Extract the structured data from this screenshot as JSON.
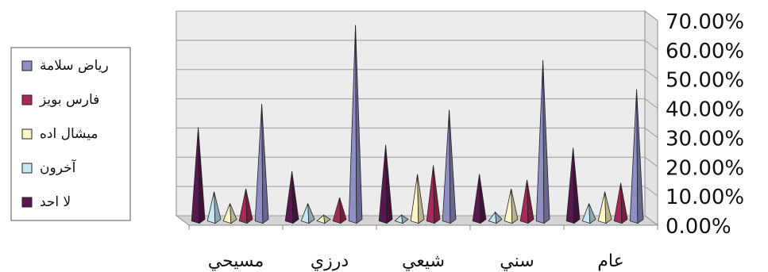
{
  "chart_data": {
    "type": "bar",
    "subtype": "3d-pyramid",
    "title": "",
    "xlabel": "",
    "ylabel": "",
    "categories": [
      "مسيحي",
      "درزي",
      "شيعي",
      "سني",
      "عام"
    ],
    "series": [
      {
        "name": "لا احد",
        "color": "#5a1850",
        "values": [
          32,
          17,
          26,
          16,
          25
        ]
      },
      {
        "name": "آخرون",
        "color": "#c6e8f4",
        "values": [
          10,
          6,
          2,
          3,
          6
        ]
      },
      {
        "name": "ميشال اده",
        "color": "#fff8c4",
        "values": [
          6,
          2,
          16,
          11,
          10
        ]
      },
      {
        "name": "فارس بويز",
        "color": "#a8285a",
        "values": [
          11,
          8,
          19,
          14,
          13
        ]
      },
      {
        "name": "رياض سلامة",
        "color": "#8f8fc6",
        "values": [
          40,
          67,
          38,
          55,
          45
        ]
      }
    ],
    "yticks": [
      "70.00%",
      "60.00%",
      "50.00%",
      "40.00%",
      "30.00%",
      "20.00%",
      "10.00%",
      "0.00%"
    ],
    "ylim": [
      0,
      70
    ],
    "grid": true,
    "legend_position": "left"
  }
}
